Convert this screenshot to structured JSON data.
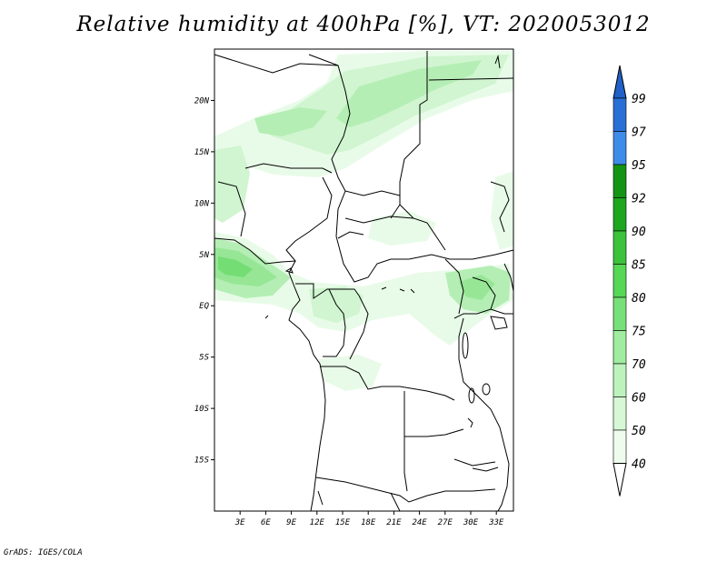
{
  "title": "Relative humidity at 400hPa [%], VT: 2020053012",
  "footer": "GrADS: IGES/COLA",
  "map": {
    "lon_range": [
      0,
      35
    ],
    "lat_range": [
      -20,
      25
    ],
    "lat_labels": [
      "20N",
      "15N",
      "10N",
      "5N",
      "EQ",
      "5S",
      "10S",
      "15S"
    ],
    "lon_labels": [
      "3E",
      "6E",
      "9E",
      "12E",
      "15E",
      "18E",
      "21E",
      "24E",
      "27E",
      "30E",
      "33E"
    ],
    "lat_label_values": [
      20,
      15,
      10,
      5,
      0,
      -5,
      -10,
      -15
    ],
    "lon_label_values": [
      3,
      6,
      9,
      12,
      15,
      18,
      21,
      24,
      27,
      30,
      33
    ]
  },
  "colorbar": {
    "labels": [
      "99",
      "97",
      "95",
      "92",
      "90",
      "85",
      "80",
      "75",
      "70",
      "60",
      "50",
      "40"
    ],
    "colors": [
      "#2a6fd6",
      "#3f8ce8",
      "#149414",
      "#1fa61f",
      "#3cc23c",
      "#56d756",
      "#78e078",
      "#a0eca0",
      "#bdf2bd",
      "#d6f8d6",
      "#eefcee",
      "#ffffff"
    ],
    "top_arrow_color": "#2060c8",
    "bottom_arrow_color": "#ffffff"
  },
  "humidity_colors": {
    "level_50": "#e8fbe8",
    "level_60": "#d0f5d0",
    "level_70": "#b4eeb4",
    "level_75": "#96e696",
    "level_80": "#74dd74"
  }
}
